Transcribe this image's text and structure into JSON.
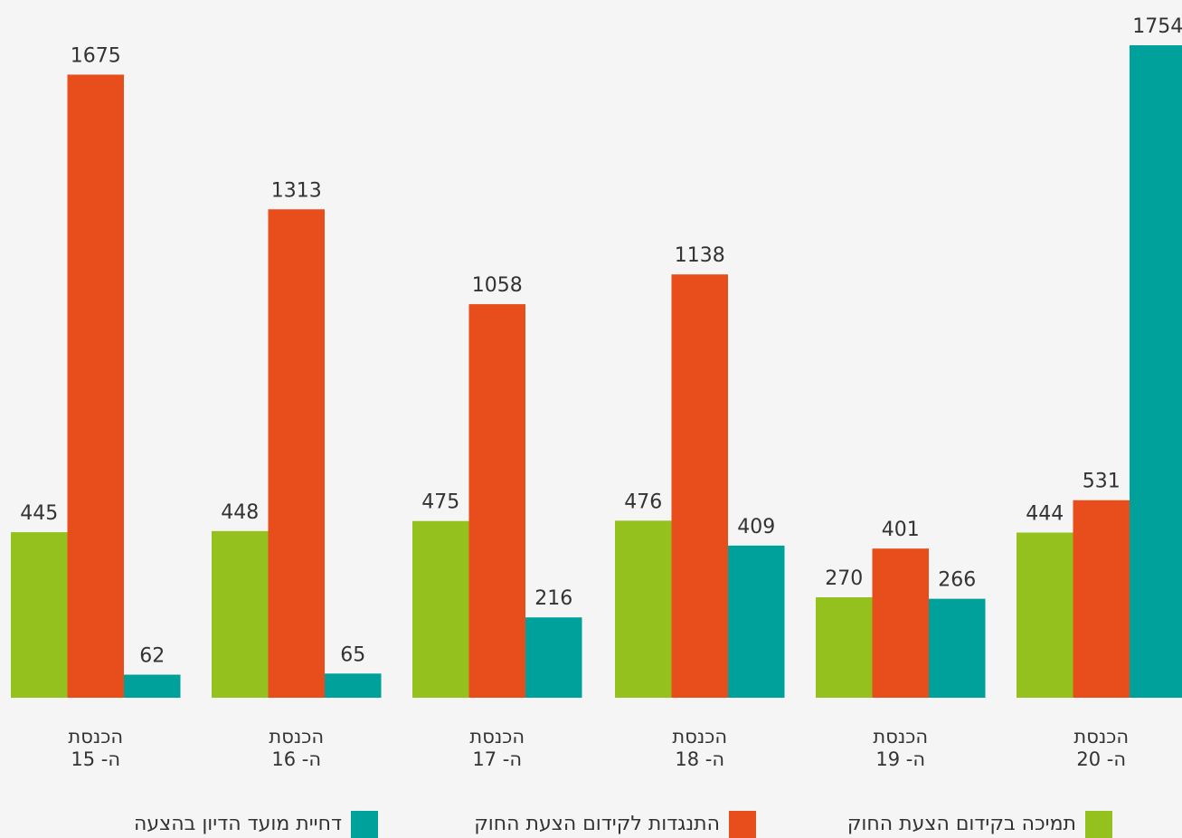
{
  "chart_data": {
    "type": "bar",
    "categories": [
      [
        "הכנסת",
        "ה- 15"
      ],
      [
        "הכנסת",
        "ה- 16"
      ],
      [
        "הכנסת",
        "ה- 17"
      ],
      [
        "הכנסת",
        "ה- 18"
      ],
      [
        "הכנסת",
        "ה- 19"
      ],
      [
        "הכנסת",
        "ה- 20"
      ]
    ],
    "series": [
      {
        "name": "תמיכה בקידום הצעת החוק",
        "color": "#95c11f",
        "values": [
          445,
          448,
          475,
          476,
          270,
          444
        ]
      },
      {
        "name": "התנגדות לקידום הצעת החוק",
        "color": "#e84e1c",
        "values": [
          1675,
          1313,
          1058,
          1138,
          401,
          531
        ]
      },
      {
        "name": "דחיית מועד הדיון בהצעה",
        "color": "#00a19a",
        "values": [
          62,
          65,
          216,
          409,
          266,
          1754
        ]
      }
    ],
    "ylim": [
      0,
      1754
    ],
    "grid": false,
    "legend": "bottom",
    "data_labels": true,
    "title": "",
    "xlabel": "",
    "ylabel": ""
  }
}
